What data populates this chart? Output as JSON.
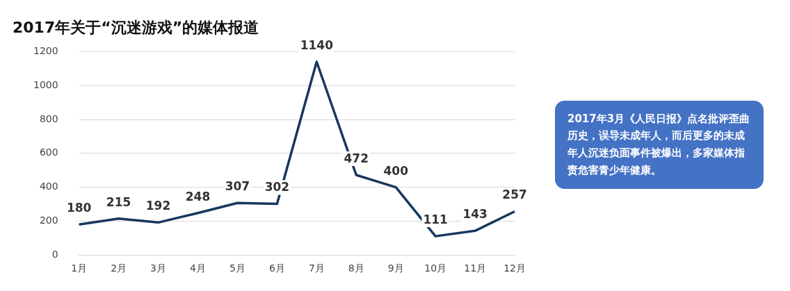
{
  "chart_data": {
    "type": "line",
    "title": "2017年关于“沉迷游戏”的媒体报道",
    "categories": [
      "1月",
      "2月",
      "3月",
      "4月",
      "5月",
      "6月",
      "7月",
      "8月",
      "9月",
      "10月",
      "11月",
      "12月"
    ],
    "series": [
      {
        "color": "#17375e",
        "values": [
          180,
          215,
          192,
          248,
          307,
          302,
          1140,
          472,
          400,
          111,
          143,
          257
        ]
      }
    ],
    "ylim": [
      0,
      1200
    ],
    "yticks": [
      0,
      200,
      400,
      600,
      800,
      1000,
      1200
    ],
    "grid": "y",
    "legend": false,
    "marker": "none",
    "line_style": "solid",
    "data_labels": true,
    "annotations": [
      "2017年3月《人民日报》点名批评歪曲历史，误导未成年人，而后更多的未成年人沉迷负面事件被爆出，多家媒体指责危害青少年健康。"
    ]
  }
}
